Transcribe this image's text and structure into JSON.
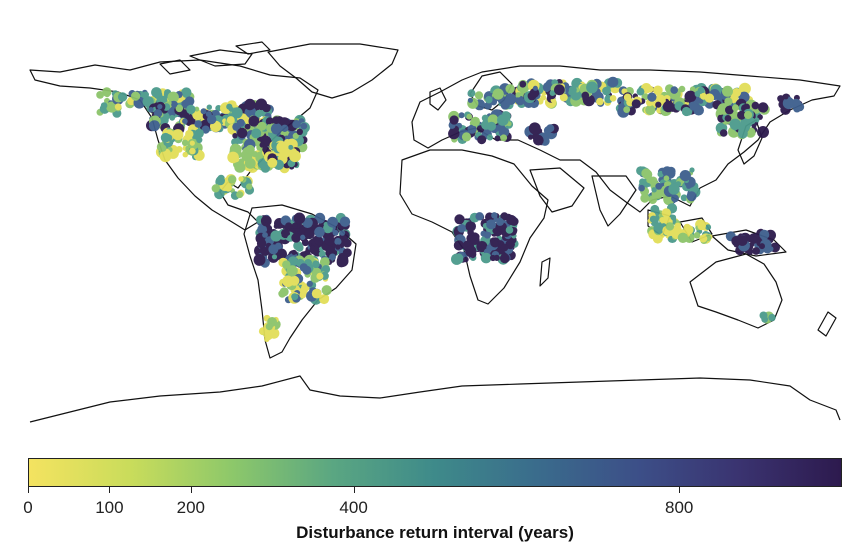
{
  "colorbar": {
    "title": "Disturbance return interval (years)",
    "scale_max": 1000,
    "ticks": [
      {
        "value": 0,
        "label": "0"
      },
      {
        "value": 100,
        "label": "100"
      },
      {
        "value": 200,
        "label": "200"
      },
      {
        "value": 400,
        "label": "400"
      },
      {
        "value": 800,
        "label": "800"
      }
    ],
    "colors": [
      "#f4e360",
      "#c9dc5b",
      "#8dc86a",
      "#5aa682",
      "#3e8a8a",
      "#3a6c8c",
      "#3c4f88",
      "#3a3370",
      "#2d1a4e"
    ]
  },
  "map": {
    "coastline_color": "#111111",
    "palette": {
      "yellow": "#e2de58",
      "green": "#8cc36a",
      "teal": "#4b9a8c",
      "blue": "#3d5e8d",
      "dark": "#2c1a4c"
    }
  }
}
